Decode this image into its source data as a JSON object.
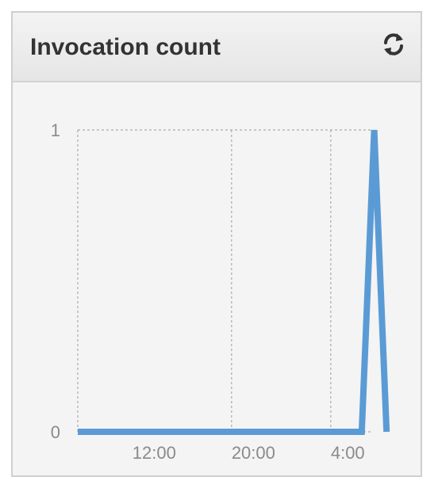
{
  "widget": {
    "title": "Invocation count",
    "refresh_icon": "refresh-icon"
  },
  "colors": {
    "line": "#5b9bd5",
    "grid": "#aaaaaa",
    "tick_text": "#8a8a8a",
    "panel_bg": "#f4f4f4"
  },
  "chart_data": {
    "type": "line",
    "title": "Invocation count",
    "xlabel": "",
    "ylabel": "",
    "x_ticks": [
      "12:00",
      "20:00",
      "4:00"
    ],
    "x_tick_hours": [
      12,
      20,
      28
    ],
    "xlim_hours": [
      7.6,
      31.4
    ],
    "ylim": [
      0,
      1
    ],
    "y_ticks": [
      "0",
      "1"
    ],
    "grid": true,
    "series": [
      {
        "x_hours": [
          7.6,
          30.5,
          31.5,
          32.5
        ],
        "values": [
          0,
          0,
          1,
          0
        ]
      }
    ]
  }
}
